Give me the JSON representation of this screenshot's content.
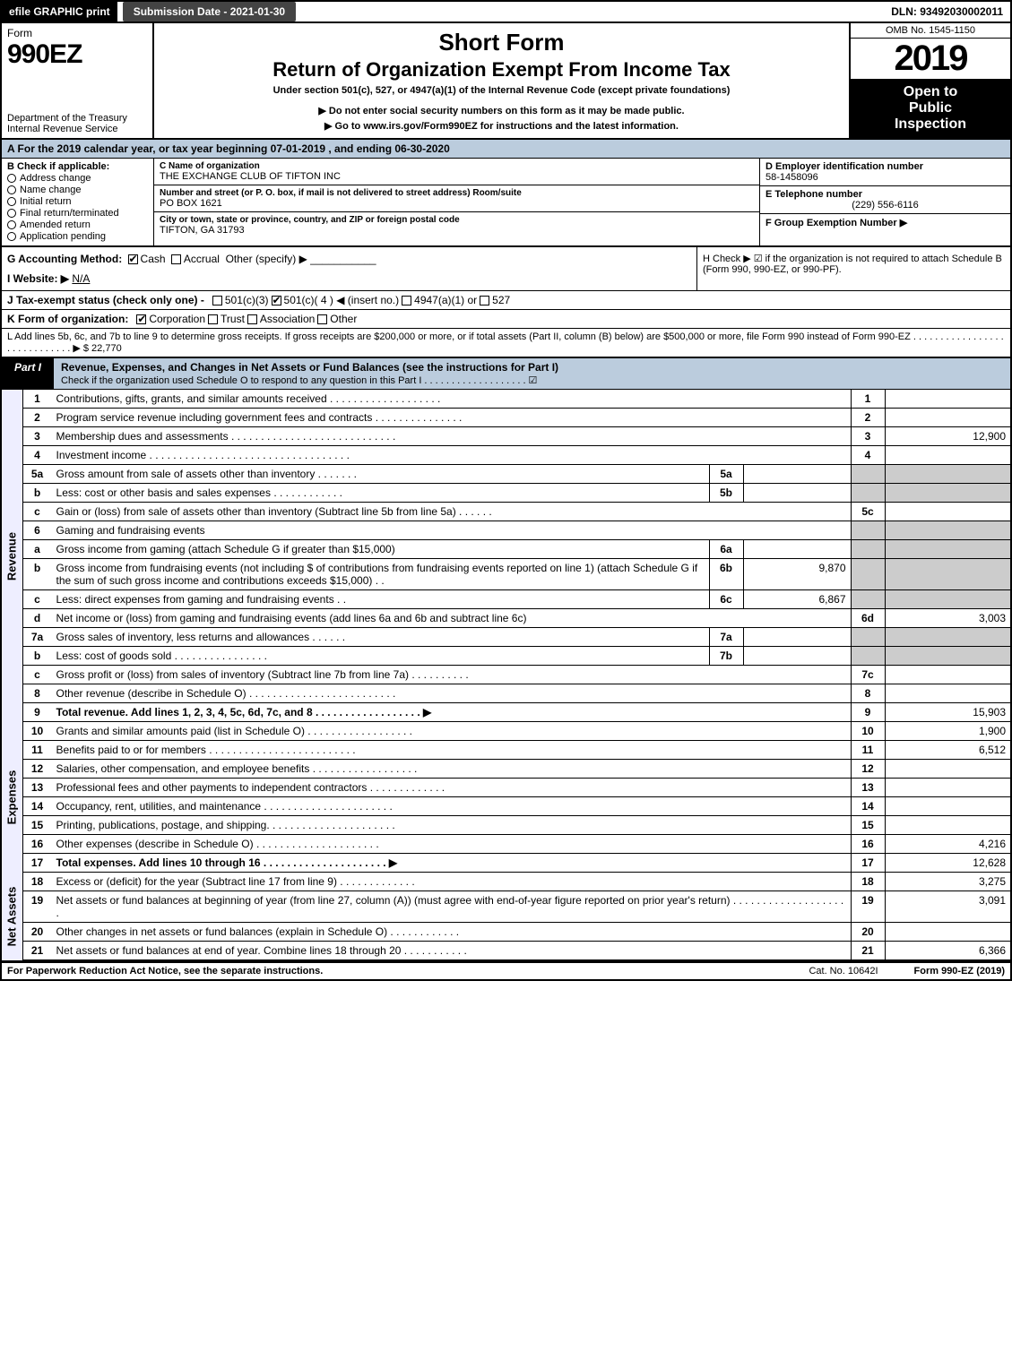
{
  "topbar": {
    "efile": "efile GRAPHIC print",
    "submission_date": "Submission Date - 2021-01-30",
    "dln": "DLN: 93492030002011"
  },
  "header": {
    "form_word": "Form",
    "form_code": "990EZ",
    "dept1": "Department of the Treasury",
    "dept2": "Internal Revenue Service",
    "short_form": "Short Form",
    "title": "Return of Organization Exempt From Income Tax",
    "subtitle": "Under section 501(c), 527, or 4947(a)(1) of the Internal Revenue Code (except private foundations)",
    "warn_ssn": "▶ Do not enter social security numbers on this form as it may be made public.",
    "goto": "▶ Go to www.irs.gov/Form990EZ for instructions and the latest information.",
    "omb": "OMB No. 1545-1150",
    "year": "2019",
    "open1": "Open to",
    "open2": "Public",
    "open3": "Inspection"
  },
  "section_a": {
    "text": "A  For the 2019 calendar year, or tax year beginning 07-01-2019 , and ending 06-30-2020"
  },
  "col_b": {
    "hdr": "B  Check if applicable:",
    "opts": [
      "Address change",
      "Name change",
      "Initial return",
      "Final return/terminated",
      "Amended return",
      "Application pending"
    ]
  },
  "col_c": {
    "name_lbl": "C Name of organization",
    "name": "THE EXCHANGE CLUB OF TIFTON INC",
    "street_lbl": "Number and street (or P. O. box, if mail is not delivered to street address)    Room/suite",
    "street": "PO BOX 1621",
    "city_lbl": "City or town, state or province, country, and ZIP or foreign postal code",
    "city": "TIFTON, GA  31793"
  },
  "col_de": {
    "d_lbl": "D Employer identification number",
    "d_val": "58-1458096",
    "e_lbl": "E Telephone number",
    "e_val": "(229) 556-6116",
    "f_lbl": "F Group Exemption Number  ▶"
  },
  "row_g": {
    "label": "G Accounting Method:",
    "cash": "Cash",
    "accrual": "Accrual",
    "other": "Other (specify) ▶"
  },
  "row_h": {
    "text": "H  Check ▶ ☑ if the organization is not required to attach Schedule B (Form 990, 990-EZ, or 990-PF)."
  },
  "row_i": {
    "label": "I Website: ▶",
    "val": "N/A"
  },
  "row_j": {
    "label": "J Tax-exempt status (check only one) -",
    "o1": "501(c)(3)",
    "o2": "501(c)( 4 ) ◀ (insert no.)",
    "o3": "4947(a)(1) or",
    "o4": "527"
  },
  "row_k": {
    "label": "K Form of organization:",
    "o1": "Corporation",
    "o2": "Trust",
    "o3": "Association",
    "o4": "Other"
  },
  "row_l": {
    "text": "L Add lines 5b, 6c, and 7b to line 9 to determine gross receipts. If gross receipts are $200,000 or more, or if total assets (Part II, column (B) below) are $500,000 or more, file Form 990 instead of Form 990-EZ  .  .  .  .  .  .  .  .  .  .  .  .  .  .  .  .  .  .  .  .  .  .  .  .  .  .  .  .  .  ▶ $ 22,770"
  },
  "part1": {
    "tab": "Part I",
    "title": "Revenue, Expenses, and Changes in Net Assets or Fund Balances (see the instructions for Part I)",
    "check_line": "Check if the organization used Schedule O to respond to any question in this Part I  .  .  .  .  .  .  .  .  .  .  .  .  .  .  .  .  .  .  .  ☑"
  },
  "revenue_side": "Revenue",
  "expenses_side": "Expenses",
  "netassets_side": "Net Assets",
  "lines_revenue": [
    {
      "n": "1",
      "s": "",
      "d": "Contributions, gifts, grants, and similar amounts received  .  .  .  .  .  .  .  .  .  .  .  .  .  .  .  .  .  .  .",
      "bn": "1",
      "a": ""
    },
    {
      "n": "2",
      "s": "",
      "d": "Program service revenue including government fees and contracts  .  .  .  .  .  .  .  .  .  .  .  .  .  .  .",
      "bn": "2",
      "a": ""
    },
    {
      "n": "3",
      "s": "",
      "d": "Membership dues and assessments  .  .  .  .  .  .  .  .  .  .  .  .  .  .  .  .  .  .  .  .  .  .  .  .  .  .  .  .",
      "bn": "3",
      "a": "12,900"
    },
    {
      "n": "4",
      "s": "",
      "d": "Investment income  .  .  .  .  .  .  .  .  .  .  .  .  .  .  .  .  .  .  .  .  .  .  .  .  .  .  .  .  .  .  .  .  .  .",
      "bn": "4",
      "a": ""
    }
  ],
  "lines_5": [
    {
      "n": "5a",
      "d": "Gross amount from sale of assets other than inventory  .  .  .  .  .  .  .",
      "ib": "5a",
      "ia": ""
    },
    {
      "n": "b",
      "d": "Less: cost or other basis and sales expenses  .  .  .  .  .  .  .  .  .  .  .  .",
      "ib": "5b",
      "ia": ""
    }
  ],
  "line_5c": {
    "n": "c",
    "d": "Gain or (loss) from sale of assets other than inventory (Subtract line 5b from line 5a)  .  .  .  .  .  .",
    "bn": "5c",
    "a": ""
  },
  "line_6": {
    "n": "6",
    "d": "Gaming and fundraising events"
  },
  "line_6a": {
    "n": "a",
    "d": "Gross income from gaming (attach Schedule G if greater than $15,000)",
    "ib": "6a",
    "ia": ""
  },
  "line_6b": {
    "n": "b",
    "d": "Gross income from fundraising events (not including $                of contributions from fundraising events reported on line 1) (attach Schedule G if the sum of such gross income and contributions exceeds $15,000)    .  .",
    "ib": "6b",
    "ia": "9,870"
  },
  "line_6c": {
    "n": "c",
    "d": "Less: direct expenses from gaming and fundraising events        .  .",
    "ib": "6c",
    "ia": "6,867"
  },
  "line_6d": {
    "n": "d",
    "d": "Net income or (loss) from gaming and fundraising events (add lines 6a and 6b and subtract line 6c)",
    "bn": "6d",
    "a": "3,003"
  },
  "lines_7": [
    {
      "n": "7a",
      "d": "Gross sales of inventory, less returns and allowances  .  .  .  .  .  .",
      "ib": "7a",
      "ia": ""
    },
    {
      "n": "b",
      "d": "Less: cost of goods sold        .  .  .  .  .  .  .  .  .  .  .  .  .  .  .  .",
      "ib": "7b",
      "ia": ""
    }
  ],
  "line_7c": {
    "n": "c",
    "d": "Gross profit or (loss) from sales of inventory (Subtract line 7b from line 7a)  .  .  .  .  .  .  .  .  .  .",
    "bn": "7c",
    "a": ""
  },
  "line_8": {
    "n": "8",
    "d": "Other revenue (describe in Schedule O)  .  .  .  .  .  .  .  .  .  .  .  .  .  .  .  .  .  .  .  .  .  .  .  .  .",
    "bn": "8",
    "a": ""
  },
  "line_9": {
    "n": "9",
    "d": "Total revenue. Add lines 1, 2, 3, 4, 5c, 6d, 7c, and 8  .  .  .  .  .  .  .  .  .  .  .  .  .  .  .  .  .  . ▶",
    "bn": "9",
    "a": "15,903",
    "bold": true
  },
  "lines_expenses": [
    {
      "n": "10",
      "d": "Grants and similar amounts paid (list in Schedule O)  .  .  .  .  .  .  .  .  .  .  .  .  .  .  .  .  .  .",
      "bn": "10",
      "a": "1,900"
    },
    {
      "n": "11",
      "d": "Benefits paid to or for members      .  .  .  .  .  .  .  .  .  .  .  .  .  .  .  .  .  .  .  .  .  .  .  .  .",
      "bn": "11",
      "a": "6,512"
    },
    {
      "n": "12",
      "d": "Salaries, other compensation, and employee benefits  .  .  .  .  .  .  .  .  .  .  .  .  .  .  .  .  .  .",
      "bn": "12",
      "a": ""
    },
    {
      "n": "13",
      "d": "Professional fees and other payments to independent contractors  .  .  .  .  .  .  .  .  .  .  .  .  .",
      "bn": "13",
      "a": ""
    },
    {
      "n": "14",
      "d": "Occupancy, rent, utilities, and maintenance  .  .  .  .  .  .  .  .  .  .  .  .  .  .  .  .  .  .  .  .  .  .",
      "bn": "14",
      "a": ""
    },
    {
      "n": "15",
      "d": "Printing, publications, postage, and shipping.  .  .  .  .  .  .  .  .  .  .  .  .  .  .  .  .  .  .  .  .  .",
      "bn": "15",
      "a": ""
    },
    {
      "n": "16",
      "d": "Other expenses (describe in Schedule O)      .  .  .  .  .  .  .  .  .  .  .  .  .  .  .  .  .  .  .  .  .",
      "bn": "16",
      "a": "4,216"
    },
    {
      "n": "17",
      "d": "Total expenses. Add lines 10 through 16     .  .  .  .  .  .  .  .  .  .  .  .  .  .  .  .  .  .  .  .  . ▶",
      "bn": "17",
      "a": "12,628",
      "bold": true
    }
  ],
  "lines_net": [
    {
      "n": "18",
      "d": "Excess or (deficit) for the year (Subtract line 17 from line 9)        .  .  .  .  .  .  .  .  .  .  .  .  .",
      "bn": "18",
      "a": "3,275"
    },
    {
      "n": "19",
      "d": "Net assets or fund balances at beginning of year (from line 27, column (A)) (must agree with end-of-year figure reported on prior year's return)  .  .  .  .  .  .  .  .  .  .  .  .  .  .  .  .  .  .  .  .",
      "bn": "19",
      "a": "3,091"
    },
    {
      "n": "20",
      "d": "Other changes in net assets or fund balances (explain in Schedule O)  .  .  .  .  .  .  .  .  .  .  .  .",
      "bn": "20",
      "a": ""
    },
    {
      "n": "21",
      "d": "Net assets or fund balances at end of year. Combine lines 18 through 20  .  .  .  .  .  .  .  .  .  .  .",
      "bn": "21",
      "a": "6,366"
    }
  ],
  "footer": {
    "left": "For Paperwork Reduction Act Notice, see the separate instructions.",
    "cat": "Cat. No. 10642I",
    "form": "Form 990-EZ (2019)"
  },
  "colors": {
    "band_bg": "#b8cde0",
    "grey_cell": "#cccccc"
  }
}
